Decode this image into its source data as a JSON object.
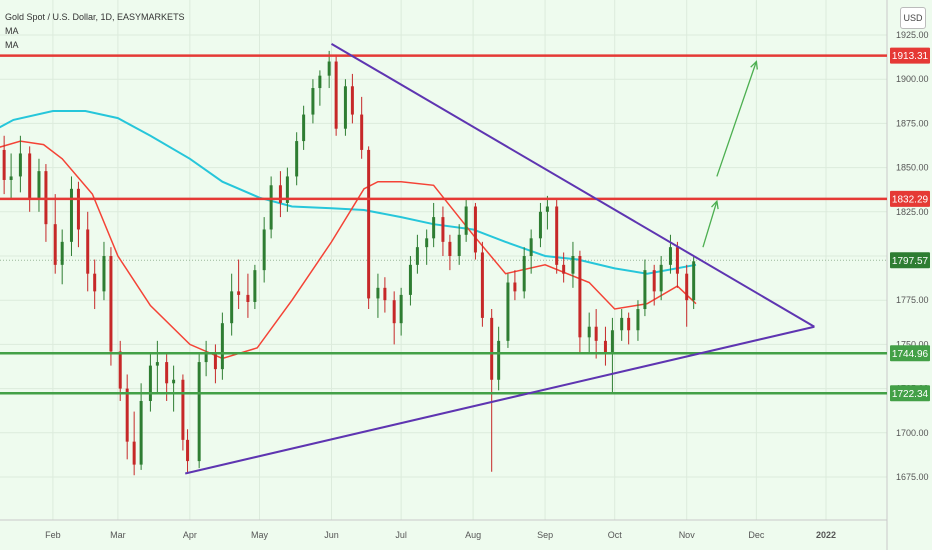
{
  "chart_data": {
    "type": "candlestick",
    "title": "Gold Spot / U.S. Dollar, 1D, EASYMARKETS",
    "legend": [
      "MA",
      "MA"
    ],
    "currency": "USD",
    "ylim": [
      1660,
      1935
    ],
    "y_ticks": [
      "1675.00",
      "1700.00",
      "1725.00",
      "1750.00",
      "1775.00",
      "1800.00",
      "1825.00",
      "1850.00",
      "1875.00",
      "1900.00",
      "1925.00"
    ],
    "x_ticks": [
      "Feb",
      "Mar",
      "Apr",
      "May",
      "Jun",
      "Jul",
      "Aug",
      "Sep",
      "Oct",
      "Nov",
      "Dec",
      "2022"
    ],
    "current_price": "1797.57",
    "horizontal_levels": [
      {
        "value": 1913.31,
        "label": "1913.31",
        "color": "#e53935"
      },
      {
        "value": 1832.29,
        "label": "1832.29",
        "color": "#e53935"
      },
      {
        "value": 1744.96,
        "label": "1744.96",
        "color": "#43a047"
      },
      {
        "value": 1722.34,
        "label": "1722.34",
        "color": "#43a047"
      }
    ],
    "trendlines": [
      {
        "name": "upper",
        "from": [
          "2021-06-01",
          1920
        ],
        "to": [
          "2021-12-26",
          1760
        ],
        "color": "#5e35b1"
      },
      {
        "name": "lower",
        "from": [
          "2021-03-30",
          1677
        ],
        "to": [
          "2021-12-26",
          1760
        ],
        "color": "#5e35b1"
      }
    ],
    "projection_arrows": [
      {
        "from": [
          "2021-11-08",
          1805
        ],
        "to": [
          "2021-11-14",
          1831
        ]
      },
      {
        "from": [
          "2021-11-14",
          1845
        ],
        "to": [
          "2021-12-01",
          1910
        ]
      }
    ],
    "ma_fast": [
      [
        "2021-01-05",
        1860
      ],
      [
        "2021-01-18",
        1865
      ],
      [
        "2021-01-28",
        1863
      ],
      [
        "2021-02-05",
        1855
      ],
      [
        "2021-02-18",
        1835
      ],
      [
        "2021-03-01",
        1800
      ],
      [
        "2021-03-15",
        1772
      ],
      [
        "2021-04-01",
        1750
      ],
      [
        "2021-04-15",
        1742
      ],
      [
        "2021-04-30",
        1748
      ],
      [
        "2021-05-15",
        1775
      ],
      [
        "2021-06-01",
        1808
      ],
      [
        "2021-06-15",
        1838
      ],
      [
        "2021-06-21",
        1842
      ],
      [
        "2021-07-01",
        1842
      ],
      [
        "2021-07-15",
        1840
      ],
      [
        "2021-08-01",
        1812
      ],
      [
        "2021-08-15",
        1790
      ],
      [
        "2021-09-01",
        1795
      ],
      [
        "2021-09-20",
        1785
      ],
      [
        "2021-10-01",
        1770
      ],
      [
        "2021-10-15",
        1773
      ],
      [
        "2021-10-28",
        1783
      ],
      [
        "2021-11-05",
        1773
      ]
    ],
    "ma_slow": [
      [
        "2021-01-01",
        1867
      ],
      [
        "2021-01-15",
        1877
      ],
      [
        "2021-02-01",
        1882
      ],
      [
        "2021-02-15",
        1882
      ],
      [
        "2021-03-01",
        1878
      ],
      [
        "2021-03-15",
        1868
      ],
      [
        "2021-04-01",
        1855
      ],
      [
        "2021-04-15",
        1842
      ],
      [
        "2021-05-01",
        1833
      ],
      [
        "2021-05-15",
        1828
      ],
      [
        "2021-06-01",
        1827
      ],
      [
        "2021-06-15",
        1826
      ],
      [
        "2021-07-01",
        1822
      ],
      [
        "2021-07-15",
        1818
      ],
      [
        "2021-08-01",
        1815
      ],
      [
        "2021-08-15",
        1808
      ],
      [
        "2021-09-01",
        1800
      ],
      [
        "2021-09-15",
        1798
      ],
      [
        "2021-10-01",
        1793
      ],
      [
        "2021-10-15",
        1790
      ],
      [
        "2021-11-05",
        1795
      ]
    ],
    "candles": [
      [
        "2021-01-05",
        1854,
        1872,
        1840,
        1860
      ],
      [
        "2021-01-11",
        1860,
        1868,
        1835,
        1843
      ],
      [
        "2021-01-14",
        1843,
        1858,
        1832,
        1845
      ],
      [
        "2021-01-18",
        1845,
        1868,
        1836,
        1858
      ],
      [
        "2021-01-22",
        1858,
        1862,
        1825,
        1832
      ],
      [
        "2021-01-26",
        1832,
        1855,
        1825,
        1848
      ],
      [
        "2021-01-29",
        1848,
        1852,
        1808,
        1818
      ],
      [
        "2021-02-02",
        1818,
        1835,
        1790,
        1795
      ],
      [
        "2021-02-05",
        1795,
        1815,
        1784,
        1808
      ],
      [
        "2021-02-09",
        1808,
        1845,
        1800,
        1838
      ],
      [
        "2021-02-12",
        1838,
        1842,
        1805,
        1815
      ],
      [
        "2021-02-16",
        1815,
        1825,
        1780,
        1790
      ],
      [
        "2021-02-19",
        1790,
        1798,
        1770,
        1780
      ],
      [
        "2021-02-23",
        1780,
        1808,
        1775,
        1800
      ],
      [
        "2021-02-26",
        1800,
        1805,
        1738,
        1746
      ],
      [
        "2021-03-02",
        1746,
        1752,
        1718,
        1725
      ],
      [
        "2021-03-05",
        1725,
        1733,
        1685,
        1695
      ],
      [
        "2021-03-08",
        1695,
        1712,
        1676,
        1682
      ],
      [
        "2021-03-11",
        1682,
        1728,
        1679,
        1718
      ],
      [
        "2021-03-15",
        1718,
        1745,
        1712,
        1738
      ],
      [
        "2021-03-18",
        1738,
        1752,
        1722,
        1740
      ],
      [
        "2021-03-22",
        1740,
        1745,
        1718,
        1728
      ],
      [
        "2021-03-25",
        1728,
        1738,
        1712,
        1730
      ],
      [
        "2021-03-29",
        1730,
        1733,
        1690,
        1696
      ],
      [
        "2021-03-31",
        1696,
        1702,
        1677,
        1684
      ],
      [
        "2021-04-05",
        1684,
        1745,
        1680,
        1740
      ],
      [
        "2021-04-08",
        1740,
        1752,
        1732,
        1745
      ],
      [
        "2021-04-12",
        1745,
        1750,
        1728,
        1736
      ],
      [
        "2021-04-15",
        1736,
        1768,
        1730,
        1762
      ],
      [
        "2021-04-19",
        1762,
        1790,
        1755,
        1780
      ],
      [
        "2021-04-22",
        1780,
        1798,
        1770,
        1778
      ],
      [
        "2021-04-26",
        1778,
        1790,
        1765,
        1774
      ],
      [
        "2021-04-29",
        1774,
        1795,
        1770,
        1792
      ],
      [
        "2021-05-03",
        1792,
        1822,
        1785,
        1815
      ],
      [
        "2021-05-06",
        1815,
        1845,
        1810,
        1840
      ],
      [
        "2021-05-10",
        1840,
        1848,
        1822,
        1830
      ],
      [
        "2021-05-13",
        1830,
        1850,
        1825,
        1845
      ],
      [
        "2021-05-17",
        1845,
        1870,
        1840,
        1865
      ],
      [
        "2021-05-20",
        1865,
        1885,
        1860,
        1880
      ],
      [
        "2021-05-24",
        1880,
        1900,
        1875,
        1895
      ],
      [
        "2021-05-27",
        1895,
        1905,
        1885,
        1902
      ],
      [
        "2021-05-31",
        1902,
        1916,
        1895,
        1910
      ],
      [
        "2021-06-03",
        1910,
        1914,
        1868,
        1872
      ],
      [
        "2021-06-07",
        1872,
        1900,
        1868,
        1896
      ],
      [
        "2021-06-10",
        1896,
        1903,
        1875,
        1880
      ],
      [
        "2021-06-14",
        1880,
        1890,
        1855,
        1860
      ],
      [
        "2021-06-17",
        1860,
        1862,
        1770,
        1776
      ],
      [
        "2021-06-21",
        1776,
        1790,
        1765,
        1782
      ],
      [
        "2021-06-24",
        1782,
        1788,
        1768,
        1775
      ],
      [
        "2021-06-28",
        1775,
        1780,
        1750,
        1762
      ],
      [
        "2021-07-01",
        1762,
        1782,
        1755,
        1778
      ],
      [
        "2021-07-05",
        1778,
        1800,
        1772,
        1795
      ],
      [
        "2021-07-08",
        1795,
        1812,
        1790,
        1805
      ],
      [
        "2021-07-12",
        1805,
        1815,
        1795,
        1810
      ],
      [
        "2021-07-15",
        1810,
        1830,
        1805,
        1822
      ],
      [
        "2021-07-19",
        1822,
        1828,
        1800,
        1808
      ],
      [
        "2021-07-22",
        1808,
        1812,
        1792,
        1800
      ],
      [
        "2021-07-26",
        1800,
        1818,
        1795,
        1812
      ],
      [
        "2021-07-29",
        1812,
        1832,
        1808,
        1828
      ],
      [
        "2021-08-02",
        1828,
        1830,
        1798,
        1802
      ],
      [
        "2021-08-05",
        1802,
        1808,
        1760,
        1765
      ],
      [
        "2021-08-09",
        1765,
        1770,
        1678,
        1730
      ],
      [
        "2021-08-12",
        1730,
        1760,
        1724,
        1752
      ],
      [
        "2021-08-16",
        1752,
        1790,
        1748,
        1785
      ],
      [
        "2021-08-19",
        1785,
        1792,
        1775,
        1780
      ],
      [
        "2021-08-23",
        1780,
        1805,
        1776,
        1800
      ],
      [
        "2021-08-26",
        1800,
        1815,
        1790,
        1810
      ],
      [
        "2021-08-30",
        1810,
        1830,
        1805,
        1825
      ],
      [
        "2021-09-02",
        1825,
        1834,
        1815,
        1828
      ],
      [
        "2021-09-06",
        1828,
        1832,
        1790,
        1795
      ],
      [
        "2021-09-09",
        1795,
        1802,
        1785,
        1790
      ],
      [
        "2021-09-13",
        1790,
        1808,
        1782,
        1800
      ],
      [
        "2021-09-16",
        1800,
        1803,
        1745,
        1754
      ],
      [
        "2021-09-20",
        1754,
        1768,
        1745,
        1760
      ],
      [
        "2021-09-23",
        1760,
        1770,
        1742,
        1752
      ],
      [
        "2021-09-27",
        1752,
        1760,
        1738,
        1745
      ],
      [
        "2021-09-30",
        1745,
        1765,
        1722,
        1758
      ],
      [
        "2021-10-04",
        1758,
        1770,
        1752,
        1765
      ],
      [
        "2021-10-07",
        1765,
        1768,
        1750,
        1758
      ],
      [
        "2021-10-11",
        1758,
        1775,
        1752,
        1770
      ],
      [
        "2021-10-14",
        1770,
        1798,
        1766,
        1792
      ],
      [
        "2021-10-18",
        1792,
        1795,
        1772,
        1780
      ],
      [
        "2021-10-21",
        1780,
        1800,
        1775,
        1795
      ],
      [
        "2021-10-25",
        1795,
        1812,
        1790,
        1805
      ],
      [
        "2021-10-28",
        1805,
        1808,
        1782,
        1790
      ],
      [
        "2021-11-01",
        1790,
        1795,
        1760,
        1775
      ],
      [
        "2021-11-04",
        1775,
        1800,
        1770,
        1797
      ]
    ]
  }
}
